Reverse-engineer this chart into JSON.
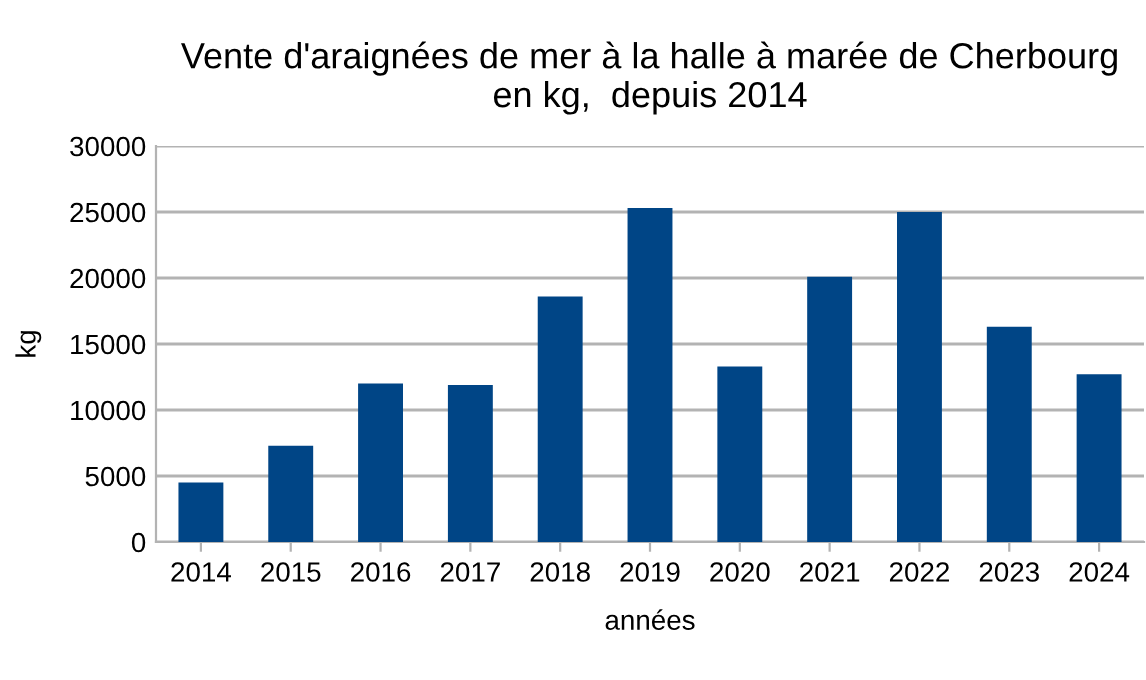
{
  "chart_data": {
    "type": "bar",
    "title": "Vente d'araignées de mer à la halle à marée de Cherbourg\nen kg,  depuis 2014",
    "xlabel": "années",
    "ylabel": "kg",
    "categories": [
      "2014",
      "2015",
      "2016",
      "2017",
      "2018",
      "2019",
      "2020",
      "2021",
      "2022",
      "2023",
      "2024"
    ],
    "series": [
      {
        "color": "#004586",
        "values": [
          4500,
          7300,
          12000,
          11900,
          18600,
          25300,
          13300,
          20100,
          25000,
          16300,
          12700
        ]
      }
    ],
    "ylim": [
      0,
      30000
    ],
    "yticks": [
      0,
      5000,
      10000,
      15000,
      20000,
      25000,
      30000
    ],
    "grid": "y",
    "legend": false
  }
}
